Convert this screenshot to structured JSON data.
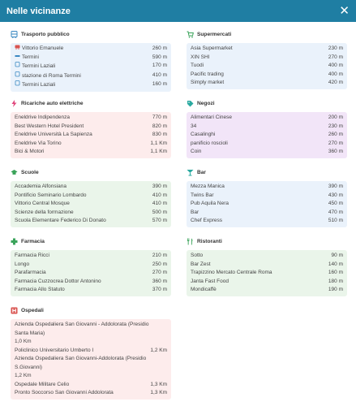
{
  "header": {
    "title": "Nelle vicinanze",
    "close_label": "✕"
  },
  "sections": {
    "trasporto": {
      "title": "Trasporto pubblico",
      "items": [
        {
          "icon": "train-icon",
          "glyph": "🚆",
          "name": "Vittorio Emanuele",
          "dist": "260 m"
        },
        {
          "icon": "metro-icon",
          "glyph": "▬",
          "name": "Termini",
          "dist": "590 m"
        },
        {
          "icon": "bus-icon",
          "glyph": "▯",
          "name": "Termini Laziali",
          "dist": "170 m"
        },
        {
          "icon": "bus-icon",
          "glyph": "▯",
          "name": "stazione di Roma Termini",
          "dist": "410 m"
        },
        {
          "icon": "bus-icon",
          "glyph": "▯",
          "name": "Termini Laziali",
          "dist": "160 m"
        }
      ]
    },
    "supermercati": {
      "title": "Supermercati",
      "items": [
        {
          "name": "Asia Supermarket",
          "dist": "230 m"
        },
        {
          "name": "XIN SHI",
          "dist": "270 m"
        },
        {
          "name": "Tuodi",
          "dist": "400 m"
        },
        {
          "name": "Pacific trading",
          "dist": "400 m"
        },
        {
          "name": "Simply market",
          "dist": "420 m"
        }
      ]
    },
    "ricariche": {
      "title": "Ricariche auto elettriche",
      "items": [
        {
          "name": "Eneldrive Indipendenza",
          "dist": "770 m"
        },
        {
          "name": "Best Western Hotel President",
          "dist": "820 m"
        },
        {
          "name": "Eneldrive Università La Sapienza",
          "dist": "830 m"
        },
        {
          "name": "Eneldrive Via Torino",
          "dist": "1,1 Km"
        },
        {
          "name": "Bici & Motori",
          "dist": "1,1 Km"
        }
      ]
    },
    "negozi": {
      "title": "Negozi",
      "items": [
        {
          "name": "Alimentari Cinese",
          "dist": "200 m"
        },
        {
          "name": "34",
          "dist": "230 m"
        },
        {
          "name": "Casalinghi",
          "dist": "260 m"
        },
        {
          "name": "panificio roscioli",
          "dist": "270 m"
        },
        {
          "name": "Coin",
          "dist": "360 m"
        }
      ]
    },
    "scuole": {
      "title": "Scuole",
      "items": [
        {
          "name": "Accademia Alfonsiana",
          "dist": "390 m"
        },
        {
          "name": "Pontificio Seminario Lombardo",
          "dist": "410 m"
        },
        {
          "name": "Vittorio Central Mosque",
          "dist": "410 m"
        },
        {
          "name": "Scienze della formazione",
          "dist": "500 m"
        },
        {
          "name": "Scuola Elementare Federico Di Donato",
          "dist": "570 m"
        }
      ]
    },
    "bar": {
      "title": "Bar",
      "items": [
        {
          "name": "Mezza Manica",
          "dist": "390 m"
        },
        {
          "name": "Twins Bar",
          "dist": "430 m"
        },
        {
          "name": "Pub Aquila Nera",
          "dist": "450 m"
        },
        {
          "name": "Bar",
          "dist": "470 m"
        },
        {
          "name": "Chef Express",
          "dist": "510 m"
        }
      ]
    },
    "farmacia": {
      "title": "Farmacia",
      "items": [
        {
          "name": "Farmacia Ricci",
          "dist": "210 m"
        },
        {
          "name": "Longo",
          "dist": "250 m"
        },
        {
          "name": "Parafarmacia",
          "dist": "270 m"
        },
        {
          "name": "Farmacia Cuzzocrea Dottor Antonino",
          "dist": "360 m"
        },
        {
          "name": "Farmacia Allo Statuto",
          "dist": "370 m"
        }
      ]
    },
    "ristoranti": {
      "title": "Ristoranti",
      "items": [
        {
          "name": "Sotto",
          "dist": "90 m"
        },
        {
          "name": "Bar Zest",
          "dist": "140 m"
        },
        {
          "name": "Trapizzino Mercato Centrale Roma",
          "dist": "160 m"
        },
        {
          "name": "Janta Fast Food",
          "dist": "180 m"
        },
        {
          "name": "Mondicaffè",
          "dist": "190 m"
        }
      ]
    },
    "ospedali": {
      "title": "Ospedali",
      "items": [
        {
          "name": "Azienda Ospedaliera San Giovanni - Addolorata (Presidio Santa Maria)",
          "dist": "1,0 Km"
        },
        {
          "name": "Policlinico Universitario Umberto I",
          "dist": "1,2 Km"
        },
        {
          "name": "Azienda Ospedaliera San Giovanni-Addolorata (Presidio S.Giovanni)",
          "dist": "1,2 Km"
        },
        {
          "name": "Ospedale Militare Celio",
          "dist": "1,3 Km"
        },
        {
          "name": "Pronto Soccorso San Giovanni Addolorata",
          "dist": "1,3 Km"
        }
      ]
    }
  }
}
